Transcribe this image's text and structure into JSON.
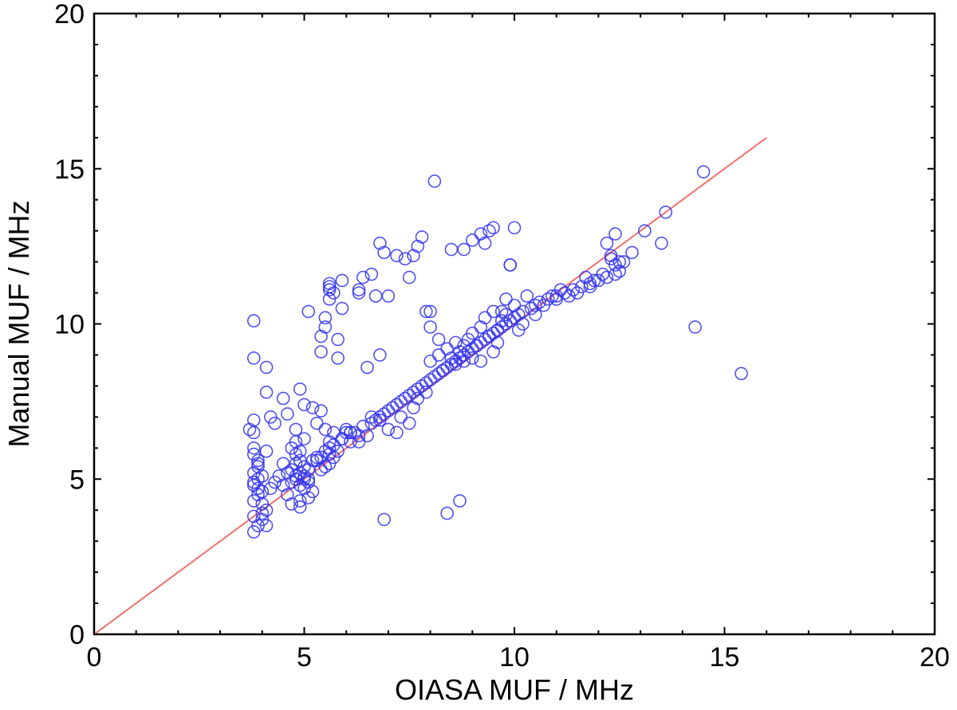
{
  "chart_data": {
    "type": "scatter",
    "title": "",
    "xlabel": "OIASA MUF / MHz",
    "ylabel": "Manual MUF / MHz",
    "xlim": [
      0,
      20
    ],
    "ylim": [
      0,
      20
    ],
    "xticks": [
      "0",
      "5",
      "10",
      "15",
      "20"
    ],
    "yticks": [
      "0",
      "5",
      "10",
      "15",
      "20"
    ],
    "grid": false,
    "legend": "none",
    "marker": "open-circle",
    "marker_color": "#3333ee",
    "reference_line": {
      "type": "y=x",
      "x": [
        0,
        16
      ],
      "y": [
        0,
        16
      ],
      "color": "#f07070"
    },
    "x": [
      3.7,
      3.8,
      3.8,
      3.8,
      3.9,
      3.8,
      3.9,
      3.8,
      3.9,
      4.0,
      3.9,
      3.8,
      4.0,
      4.1,
      3.8,
      4.0,
      3.9,
      3.8,
      4.1,
      4.0,
      4.2,
      4.0,
      3.9,
      3.8,
      4.1,
      3.9,
      4.3,
      4.4,
      4.5,
      4.5,
      4.6,
      4.7,
      4.7,
      4.8,
      4.8,
      4.9,
      4.9,
      5.0,
      5.0,
      5.1,
      4.8,
      4.9,
      5.0,
      5.1,
      5.2,
      4.9,
      4.7,
      4.6,
      5.0,
      5.1,
      4.8,
      4.9,
      5.2,
      5.3,
      4.7,
      4.8,
      5.0,
      5.1,
      4.9,
      5.3,
      5.4,
      5.5,
      5.6,
      5.6,
      5.7,
      5.8,
      5.5,
      5.6,
      5.4,
      5.7,
      5.6,
      5.9,
      6.0,
      6.1,
      6.2,
      6.4,
      6.5,
      6.6,
      6.7,
      6.8,
      6.9,
      7.0,
      7.1,
      7.2,
      7.3,
      7.4,
      7.5,
      7.6,
      7.7,
      7.8,
      7.9,
      8.0,
      8.1,
      8.2,
      8.3,
      8.4,
      8.5,
      8.6,
      8.7,
      8.8,
      8.9,
      9.0,
      9.1,
      9.2,
      9.3,
      9.4,
      9.5,
      9.6,
      9.7,
      9.8,
      9.9,
      10.0,
      10.1,
      10.2,
      10.4,
      10.5,
      10.6,
      10.8,
      11.0,
      11.2,
      11.4,
      11.6,
      11.8,
      12.0,
      12.2,
      12.4,
      12.5,
      8.2,
      8.4,
      8.6,
      8.7,
      8.8,
      8.9,
      9.0,
      9.1,
      9.2,
      9.3,
      9.5,
      9.6,
      9.7,
      9.8,
      10.0,
      10.2,
      10.3,
      8.0,
      8.3,
      8.5,
      8.6,
      8.8,
      9.0,
      9.2,
      9.4,
      9.6,
      11.5,
      11.8,
      12.1,
      12.3,
      12.4,
      12.6,
      11.0,
      11.3,
      11.9,
      6.8,
      7.0,
      7.2,
      7.3,
      7.5,
      7.6,
      7.7,
      7.9,
      6.6,
      6.3,
      5.5,
      5.7,
      5.9,
      6.1,
      6.3,
      5.3,
      5.2,
      5.4,
      3.8,
      3.8,
      3.8,
      4.1,
      4.1,
      4.2,
      4.3,
      4.5,
      4.6,
      4.8,
      4.9,
      5.0,
      5.1,
      5.4,
      5.4,
      5.5,
      5.5,
      5.6,
      5.6,
      5.6,
      5.7,
      5.6,
      5.8,
      5.8,
      5.9,
      5.9,
      6.0,
      6.1,
      6.3,
      6.3,
      6.4,
      6.5,
      6.6,
      6.7,
      6.8,
      6.8,
      6.9,
      7.0,
      7.2,
      7.4,
      7.5,
      7.7,
      7.8,
      7.9,
      8.0,
      8.5,
      8.8,
      9.0,
      9.2,
      9.3,
      9.4,
      9.5,
      9.8,
      9.9,
      10.0,
      8.1,
      8.4,
      8.7,
      6.9,
      7.6,
      12.8,
      13.1,
      13.5,
      13.6,
      14.5,
      14.3,
      15.4,
      12.2,
      12.3,
      12.4,
      12.5,
      11.7,
      11.1,
      10.9,
      10.7,
      10.5,
      8.0,
      8.2,
      9.7,
      9.9,
      10.1,
      9.5
    ],
    "y": [
      6.6,
      6.9,
      6.0,
      5.8,
      5.6,
      5.2,
      5.0,
      4.8,
      4.7,
      4.6,
      4.5,
      4.3,
      4.2,
      4.0,
      3.8,
      3.7,
      3.5,
      3.3,
      3.5,
      3.9,
      4.7,
      5.1,
      5.4,
      4.9,
      5.9,
      5.5,
      4.9,
      5.1,
      4.8,
      5.5,
      5.2,
      4.9,
      5.3,
      5.0,
      5.5,
      4.8,
      5.2,
      5.0,
      5.4,
      5.3,
      5.8,
      5.6,
      5.1,
      4.9,
      4.6,
      4.3,
      4.2,
      4.5,
      4.7,
      5.0,
      5.1,
      5.9,
      5.6,
      5.7,
      6.0,
      6.2,
      6.3,
      4.4,
      4.1,
      5.6,
      5.7,
      5.9,
      6.0,
      5.8,
      5.7,
      5.9,
      5.4,
      5.5,
      5.3,
      6.1,
      6.2,
      6.3,
      6.5,
      6.2,
      6.5,
      6.7,
      6.4,
      6.8,
      6.9,
      7.0,
      7.1,
      7.2,
      7.3,
      7.4,
      7.5,
      7.6,
      7.7,
      7.8,
      7.9,
      8.0,
      8.1,
      8.2,
      8.3,
      8.4,
      8.5,
      8.6,
      8.7,
      8.8,
      8.9,
      9.0,
      9.1,
      9.2,
      9.3,
      9.4,
      9.5,
      9.6,
      9.7,
      9.8,
      9.9,
      10.0,
      10.1,
      10.2,
      10.3,
      10.4,
      10.5,
      10.6,
      10.7,
      10.8,
      10.9,
      11.0,
      11.1,
      11.2,
      11.3,
      11.4,
      11.5,
      11.6,
      11.7,
      9.0,
      9.2,
      9.4,
      9.1,
      8.8,
      9.5,
      9.7,
      9.3,
      9.9,
      10.2,
      10.4,
      9.8,
      10.1,
      10.3,
      10.6,
      10.0,
      10.9,
      8.8,
      8.5,
      8.9,
      8.7,
      9.3,
      8.9,
      8.8,
      9.6,
      9.4,
      11.0,
      11.2,
      11.6,
      12.1,
      11.9,
      12.0,
      10.8,
      10.9,
      11.4,
      6.9,
      6.6,
      6.5,
      7.0,
      6.8,
      7.3,
      7.6,
      7.8,
      7.0,
      6.2,
      6.6,
      6.5,
      6.3,
      6.5,
      6.4,
      6.8,
      7.3,
      7.2,
      10.1,
      8.9,
      6.5,
      8.6,
      7.8,
      7.0,
      6.8,
      7.6,
      7.1,
      6.6,
      7.9,
      7.4,
      10.4,
      9.1,
      9.6,
      9.9,
      10.2,
      10.8,
      11.1,
      11.3,
      11.0,
      11.2,
      8.9,
      9.5,
      11.4,
      10.5,
      6.6,
      6.5,
      11.1,
      11.0,
      11.5,
      8.6,
      11.6,
      10.9,
      12.6,
      9.0,
      12.3,
      10.9,
      12.2,
      12.1,
      11.5,
      12.5,
      12.8,
      10.4,
      9.9,
      12.4,
      12.4,
      12.7,
      12.9,
      12.6,
      13.0,
      13.1,
      10.8,
      11.9,
      13.1,
      14.6,
      3.9,
      4.3,
      3.7,
      12.2,
      12.3,
      13.0,
      12.6,
      13.6,
      14.9,
      9.9,
      8.4,
      12.6,
      12.2,
      12.9,
      12.0,
      11.5,
      11.1,
      10.9,
      10.6,
      10.3,
      10.4,
      9.5,
      10.4,
      11.9,
      9.8,
      9.1
    ]
  }
}
